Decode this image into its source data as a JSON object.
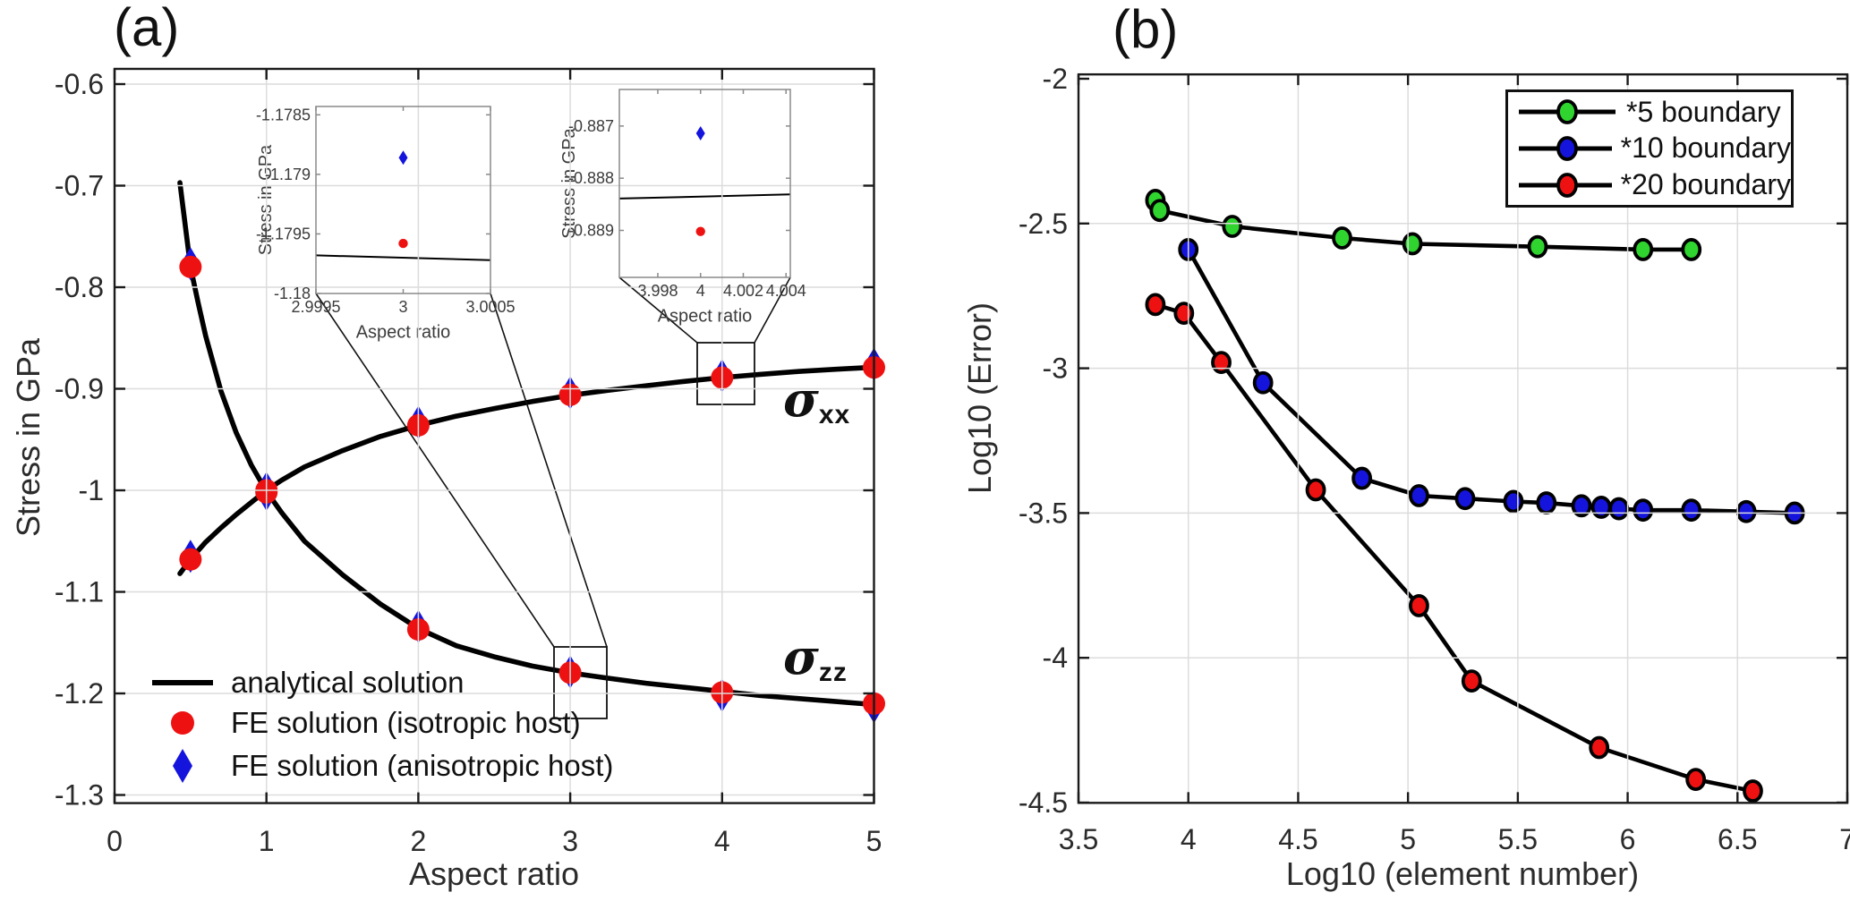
{
  "colors": {
    "analytical": "#000000",
    "isotropic_red": "#ee1111",
    "anisotropic_blue": "#1414dd",
    "boundary5_green": "#2fd42f",
    "boundary10_blue": "#1414dd",
    "boundary20_red": "#ee1111",
    "grid": "#dcdcdc",
    "axis": "#1a1a1a"
  },
  "chart_data": [
    {
      "id": "panel_a",
      "type": "line",
      "title": "(a)",
      "xlabel": "Aspect ratio",
      "ylabel": "Stress in GPa",
      "xlim": [
        0,
        5
      ],
      "ylim": [
        -1.308,
        -0.585
      ],
      "grid": true,
      "xticks": {
        "values": [
          0,
          1,
          2,
          3,
          4,
          5
        ],
        "labels": [
          "0",
          "1",
          "2",
          "3",
          "4",
          "5"
        ]
      },
      "yticks": {
        "values": [
          -0.6,
          -0.7,
          -0.8,
          -0.9,
          -1,
          -1.1,
          -1.2,
          -1.3
        ],
        "labels": [
          "-0.6",
          "-0.7",
          "-0.8",
          "-0.9",
          "-1",
          "-1.1",
          "-1.2",
          "-1.3"
        ]
      },
      "analytical_curves": [
        {
          "name": "sigma_xx",
          "label": {
            "text": "σ",
            "sub": "xx"
          },
          "points": [
            [
              0.43,
              -1.082
            ],
            [
              0.5,
              -1.068
            ],
            [
              0.6,
              -1.051
            ],
            [
              0.7,
              -1.037
            ],
            [
              0.8,
              -1.024
            ],
            [
              0.9,
              -1.012
            ],
            [
              1,
              -1.0
            ],
            [
              1.1,
              -0.99
            ],
            [
              1.25,
              -0.977
            ],
            [
              1.5,
              -0.961
            ],
            [
              1.75,
              -0.947
            ],
            [
              2,
              -0.936
            ],
            [
              2.25,
              -0.927
            ],
            [
              2.5,
              -0.9195
            ],
            [
              2.75,
              -0.9125
            ],
            [
              3,
              -0.9065
            ],
            [
              3.25,
              -0.9015
            ],
            [
              3.5,
              -0.897
            ],
            [
              3.75,
              -0.8928
            ],
            [
              4,
              -0.889
            ],
            [
              4.25,
              -0.8858
            ],
            [
              4.5,
              -0.883
            ],
            [
              4.75,
              -0.8808
            ],
            [
              5,
              -0.8788
            ]
          ]
        },
        {
          "name": "sigma_zz",
          "label": {
            "text": "σ",
            "sub": "zz"
          },
          "points": [
            [
              0.43,
              -0.697
            ],
            [
              0.5,
              -0.78
            ],
            [
              0.55,
              -0.815
            ],
            [
              0.6,
              -0.848
            ],
            [
              0.7,
              -0.902
            ],
            [
              0.8,
              -0.943
            ],
            [
              0.9,
              -0.975
            ],
            [
              1,
              -1.001
            ],
            [
              1.1,
              -1.022
            ],
            [
              1.25,
              -1.05
            ],
            [
              1.5,
              -1.083
            ],
            [
              1.75,
              -1.112
            ],
            [
              2,
              -1.136
            ],
            [
              2.25,
              -1.153
            ],
            [
              2.5,
              -1.164
            ],
            [
              2.75,
              -1.173
            ],
            [
              3,
              -1.1797
            ],
            [
              3.25,
              -1.185
            ],
            [
              3.5,
              -1.19
            ],
            [
              3.75,
              -1.194
            ],
            [
              4,
              -1.198
            ],
            [
              4.25,
              -1.202
            ],
            [
              4.5,
              -1.205
            ],
            [
              4.75,
              -1.208
            ],
            [
              5,
              -1.211
            ]
          ]
        }
      ],
      "fe_solutions": {
        "x": [
          0.5,
          1,
          2,
          3,
          4,
          5
        ],
        "sigma_xx": {
          "isotropic": [
            -1.068,
            -1.0,
            -0.936,
            -0.906,
            -0.889,
            -0.879
          ],
          "anisotropic": [
            -1.065,
            -0.998,
            -0.933,
            -0.904,
            -0.8871,
            -0.876
          ]
        },
        "sigma_zz": {
          "isotropic": [
            -0.78,
            -1.002,
            -1.137,
            -1.1796,
            -1.199,
            -1.21
          ],
          "anisotropic": [
            -0.777,
            -1.004,
            -1.134,
            -1.1789,
            -1.202,
            -1.213
          ]
        }
      },
      "legend": [
        {
          "label": "analytical solution",
          "marker": "line",
          "color": "#000000"
        },
        {
          "label": "FE solution (isotropic host)",
          "marker": "circle",
          "color": "#ee1111"
        },
        {
          "label": "FE solution (anisotropic host)",
          "marker": "diamond",
          "color": "#1414dd"
        }
      ],
      "insets": [
        {
          "id": "inset_x3",
          "xlabel": "Aspect ratio",
          "ylabel": "Stress in GPa",
          "xlim": [
            2.9995,
            3.0005
          ],
          "ylim": [
            -1.18,
            -1.17843
          ],
          "xticks": {
            "values": [
              2.9995,
              3,
              3.0005
            ],
            "labels": [
              "2.9995",
              "3",
              "3.0005"
            ]
          },
          "yticks": {
            "values": [
              -1.1785,
              -1.179,
              -1.1795,
              -1.18
            ],
            "labels": [
              "-1.1785",
              "-1.179",
              "-1.1795",
              "-1.18"
            ]
          },
          "analytical_line": [
            [
              2.9995,
              -1.17968
            ],
            [
              3.0005,
              -1.17972
            ]
          ],
          "isotropic_point": [
            3,
            -1.17958
          ],
          "anisotropic_point": [
            3,
            -1.17886
          ]
        },
        {
          "id": "inset_x4",
          "xlabel": "Aspect ratio",
          "ylabel": "Stress in GPa",
          "xlim": [
            3.9962,
            4.0042
          ],
          "ylim": [
            -0.8899,
            -0.8863
          ],
          "xticks": {
            "values": [
              3.998,
              4,
              4.002,
              4.004
            ],
            "labels": [
              "3.998",
              "4",
              "4.002",
              "4.004"
            ]
          },
          "yticks": {
            "values": [
              -0.887,
              -0.888,
              -0.889
            ],
            "labels": [
              "-0.887",
              "-0.888",
              "-0.889"
            ]
          },
          "analytical_line": [
            [
              3.9962,
              -0.88839
            ],
            [
              4.0042,
              -0.88831
            ]
          ],
          "isotropic_point": [
            4,
            -0.88902
          ],
          "anisotropic_point": [
            4,
            -0.88714
          ]
        }
      ]
    },
    {
      "id": "panel_b",
      "type": "line",
      "title": "(b)",
      "xlabel": "Log10 (element number)",
      "ylabel": "Log10 (Error)",
      "xlim": [
        3.5,
        7
      ],
      "ylim": [
        -4.501,
        -1.985
      ],
      "grid": true,
      "xticks": {
        "values": [
          3.5,
          4,
          4.5,
          5,
          5.5,
          6,
          6.5,
          7
        ],
        "labels": [
          "3.5",
          "4",
          "4.5",
          "5",
          "5.5",
          "6",
          "6.5",
          "7"
        ]
      },
      "yticks": {
        "values": [
          -2,
          -2.5,
          -3,
          -3.5,
          -4,
          -4.5
        ],
        "labels": [
          "-2",
          "-2.5",
          "-3",
          "-3.5",
          "-4",
          "-4.5"
        ]
      },
      "series": [
        {
          "name": "*5 boundary",
          "color": "#2fd42f",
          "x": [
            3.85,
            3.87,
            4.2,
            4.7,
            5.02,
            5.59,
            6.07,
            6.29
          ],
          "y": [
            -2.42,
            -2.455,
            -2.51,
            -2.55,
            -2.57,
            -2.58,
            -2.59,
            -2.59
          ]
        },
        {
          "name": "*10 boundary",
          "color": "#1414dd",
          "x": [
            4.0,
            4.34,
            4.79,
            5.05,
            5.26,
            5.48,
            5.63,
            5.79,
            5.88,
            5.96,
            6.07,
            6.29,
            6.54,
            6.76
          ],
          "y": [
            -2.59,
            -3.05,
            -3.38,
            -3.44,
            -3.45,
            -3.46,
            -3.465,
            -3.475,
            -3.48,
            -3.485,
            -3.49,
            -3.49,
            -3.495,
            -3.5
          ]
        },
        {
          "name": "*20 boundary",
          "color": "#ee1111",
          "x": [
            3.85,
            3.98,
            4.15,
            4.58,
            5.05,
            5.29,
            5.87,
            6.31,
            6.57
          ],
          "y": [
            -2.78,
            -2.81,
            -2.98,
            -3.42,
            -3.82,
            -4.08,
            -4.31,
            -4.42,
            -4.46
          ]
        }
      ],
      "legend": [
        {
          "label": "*5 boundary",
          "color": "#2fd42f"
        },
        {
          "label": "*10 boundary",
          "color": "#1414dd"
        },
        {
          "label": "*20 boundary",
          "color": "#ee1111"
        }
      ]
    }
  ]
}
